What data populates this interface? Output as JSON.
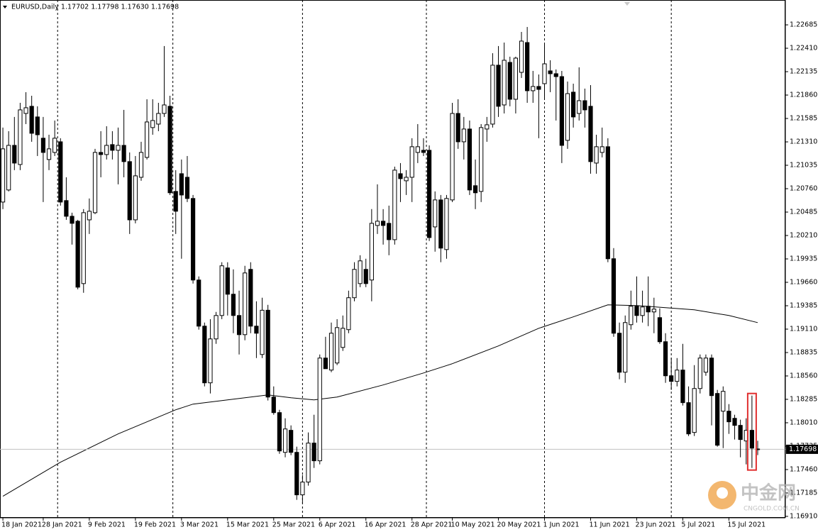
{
  "chart_data": {
    "type": "candlestick",
    "header": "EURUSD,Daily  1.17702 1.17798 1.17630 1.17698",
    "up_color": "#ffffff",
    "down_color": "#000000",
    "outline_color": "#000000",
    "open": [
      1.20603,
      1.20745,
      1.21269,
      1.21044,
      1.21644,
      1.21728,
      1.21603,
      1.21353,
      1.21103,
      1.21186,
      1.21311,
      1.2062,
      1.20436,
      1.20378,
      1.19645,
      1.20394,
      1.20478,
      1.21186,
      1.21161,
      1.21278,
      1.21211,
      1.21269,
      1.21078,
      1.20394,
      1.20894,
      1.21128,
      1.21478,
      1.21519,
      1.21644,
      1.21728,
      1.20728,
      1.20936,
      1.20894,
      1.20645,
      1.19687,
      1.19145,
      1.18479,
      1.18995,
      1.1927,
      1.19829,
      1.1952,
      1.1927,
      1.19045,
      1.19812,
      1.19145,
      1.18812,
      1.19332,
      1.18312,
      1.18129,
      1.17662,
      1.17921,
      1.17662,
      1.17163,
      1.17313,
      1.17771,
      1.17563,
      1.1877,
      1.18629,
      1.18712,
      1.18895,
      1.19104,
      1.19479,
      1.19645,
      1.19812,
      1.19687,
      1.20328,
      1.20378,
      1.20353,
      1.20161,
      1.20936,
      1.20853,
      1.20894,
      1.21186,
      1.21211,
      1.21211,
      1.20311,
      1.20628,
      1.20045,
      1.20628,
      1.21644,
      1.21311,
      1.21461,
      1.20795,
      1.20728,
      1.21461,
      1.21519,
      1.22211,
      1.21744,
      1.22244,
      1.21811,
      1.22127,
      1.22477,
      1.21911,
      1.21961,
      1.21994,
      1.22144,
      1.22111,
      1.22077,
      1.21328,
      1.21894,
      1.21644,
      1.21794,
      1.21728,
      1.21061,
      1.21186,
      1.21253,
      1.19937,
      1.19062,
      1.18604,
      1.19162,
      1.19379,
      1.1927,
      1.19379,
      1.19312,
      1.19245,
      1.18962,
      1.18562,
      1.18496,
      1.18629,
      1.18246,
      1.17896,
      1.18412,
      1.18604,
      1.1877,
      1.18354,
      1.18146,
      1.18146,
      1.18062,
      1.17979,
      1.17796,
      1.17921,
      1.17702
    ],
    "high": [
      1.21478,
      1.21436,
      1.21603,
      1.21769,
      1.21894,
      1.21852,
      1.21728,
      1.21603,
      1.21394,
      1.21561,
      1.21353,
      1.20894,
      1.20478,
      1.20394,
      1.2052,
      1.20645,
      1.21228,
      1.21436,
      1.21494,
      1.21436,
      1.21478,
      1.21686,
      1.21186,
      1.21144,
      1.21311,
      1.21811,
      1.21811,
      1.21769,
      1.22436,
      1.21852,
      1.20978,
      1.21103,
      1.21144,
      1.20686,
      1.19729,
      1.19187,
      1.19227,
      1.19312,
      1.19896,
      1.19896,
      1.19812,
      1.19562,
      1.19854,
      1.19896,
      1.19437,
      1.19479,
      1.19395,
      1.18437,
      1.18162,
      1.18062,
      1.17979,
      1.17729,
      1.17396,
      1.17896,
      1.18104,
      1.18812,
      1.1902,
      1.19187,
      1.19227,
      1.1927,
      1.19562,
      1.19896,
      1.19978,
      1.19937,
      1.2052,
      1.20811,
      1.2052,
      1.20561,
      1.21019,
      1.21061,
      1.20978,
      1.21353,
      1.21519,
      1.21353,
      1.21269,
      1.20728,
      1.20686,
      1.20686,
      1.21769,
      1.21811,
      1.21603,
      1.21561,
      1.21103,
      1.21519,
      1.21603,
      1.22352,
      1.22436,
      1.22477,
      1.22311,
      1.22311,
      1.22602,
      1.2266,
      1.22144,
      1.22102,
      1.22477,
      1.22269,
      1.22161,
      1.22144,
      1.22019,
      1.21994,
      1.22186,
      1.21936,
      1.21977,
      1.21394,
      1.21478,
      1.21353,
      1.20062,
      1.19187,
      1.1927,
      1.19562,
      1.19729,
      1.19562,
      1.19729,
      1.19479,
      1.19354,
      1.19062,
      1.1877,
      1.1877,
      1.18937,
      1.18437,
      1.18687,
      1.18812,
      1.18812,
      1.18812,
      1.18396,
      1.18437,
      1.18229,
      1.18104,
      1.18046,
      1.18062,
      1.18329,
      1.17798
    ],
    "low": [
      1.2052,
      1.20728,
      1.20978,
      1.20978,
      1.21519,
      1.21311,
      1.21144,
      1.20603,
      1.20978,
      1.21144,
      1.20561,
      1.20394,
      1.20103,
      1.19578,
      1.19537,
      1.20228,
      1.20461,
      1.20894,
      1.21103,
      1.21103,
      1.20811,
      1.20894,
      1.20228,
      1.20353,
      1.20853,
      1.21103,
      1.21394,
      1.21436,
      1.21603,
      1.20686,
      1.20228,
      1.19937,
      1.20603,
      1.19645,
      1.19104,
      1.18437,
      1.18354,
      1.18937,
      1.19227,
      1.1927,
      1.19062,
      1.18812,
      1.18979,
      1.19062,
      1.1877,
      1.1877,
      1.18271,
      1.18104,
      1.17645,
      1.17604,
      1.17629,
      1.17104,
      1.17063,
      1.17271,
      1.17479,
      1.17521,
      1.18645,
      1.18604,
      1.18687,
      1.18854,
      1.19062,
      1.19437,
      1.19603,
      1.19603,
      1.19437,
      1.20228,
      1.20103,
      1.19978,
      1.20103,
      1.20603,
      1.20686,
      1.20603,
      1.21061,
      1.21144,
      1.20145,
      1.2002,
      1.19896,
      1.19937,
      1.20603,
      1.21228,
      1.21103,
      1.20686,
      1.2052,
      1.20603,
      1.21311,
      1.21478,
      1.21603,
      1.21644,
      1.21728,
      1.21644,
      1.22061,
      1.21769,
      1.21769,
      1.21353,
      1.21811,
      1.21894,
      1.21561,
      1.21061,
      1.21228,
      1.21478,
      1.21561,
      1.21478,
      1.20936,
      1.20936,
      1.21128,
      1.19896,
      1.1902,
      1.18521,
      1.18479,
      1.19104,
      1.19187,
      1.19187,
      1.19145,
      1.19062,
      1.18937,
      1.18479,
      1.18396,
      1.18437,
      1.18212,
      1.17854,
      1.17854,
      1.18354,
      1.18562,
      1.17979,
      1.17729,
      1.17712,
      1.17879,
      1.17813,
      1.17604,
      1.17521,
      1.17479,
      1.1763
    ],
    "close": [
      1.21228,
      1.21269,
      1.21061,
      1.21686,
      1.21711,
      1.21411,
      1.21394,
      1.21186,
      1.21228,
      1.21353,
      1.20603,
      1.20436,
      1.20353,
      1.19603,
      1.20478,
      1.20495,
      1.21186,
      1.21161,
      1.21269,
      1.21211,
      1.21269,
      1.21078,
      1.20394,
      1.20911,
      1.21186,
      1.21544,
      1.21561,
      1.21644,
      1.21744,
      1.20712,
      1.20495,
      1.20686,
      1.20645,
      1.19687,
      1.19145,
      1.18479,
      1.18995,
      1.1927,
      1.19854,
      1.1952,
      1.1927,
      1.19045,
      1.1977,
      1.19145,
      1.19062,
      1.19332,
      1.18312,
      1.18129,
      1.17679,
      1.17937,
      1.17662,
      1.17163,
      1.17313,
      1.17771,
      1.17563,
      1.1877,
      1.18645,
      1.19062,
      1.19128,
      1.1912,
      1.19479,
      1.19812,
      1.19912,
      1.19645,
      1.20353,
      1.20378,
      1.20328,
      1.20161,
      1.20978,
      1.20878,
      1.20894,
      1.21253,
      1.21253,
      1.21186,
      1.20186,
      1.20628,
      1.20062,
      1.20645,
      1.21644,
      1.21311,
      1.21461,
      1.20745,
      1.20712,
      1.21478,
      1.21511,
      1.22211,
      1.21728,
      1.22269,
      1.21811,
      1.22294,
      1.22494,
      1.21911,
      1.21961,
      1.21927,
      1.22227,
      1.22111,
      1.22077,
      1.21269,
      1.21877,
      1.21603,
      1.21794,
      1.21686,
      1.21078,
      1.21253,
      1.21253,
      1.19937,
      1.19062,
      1.18604,
      1.19187,
      1.19379,
      1.1927,
      1.1937,
      1.19312,
      1.19345,
      1.18962,
      1.18562,
      1.18496,
      1.18629,
      1.18246,
      1.17879,
      1.18412,
      1.1877,
      1.1877,
      1.18329,
      1.17746,
      1.18379,
      1.18021,
      1.17979,
      1.17813,
      1.17921,
      1.17712,
      1.17698
    ],
    "moving_average": {
      "color": "#000000",
      "x": [
        0,
        10,
        20,
        30,
        33,
        40,
        46,
        50,
        54,
        58,
        66,
        73,
        78,
        86,
        93,
        99,
        105,
        110,
        115,
        120,
        126,
        131
      ],
      "values": [
        1.17146,
        1.17546,
        1.17879,
        1.18162,
        1.18229,
        1.18287,
        1.18337,
        1.18304,
        1.18279,
        1.18312,
        1.18454,
        1.18595,
        1.18704,
        1.18912,
        1.1912,
        1.19254,
        1.19395,
        1.19387,
        1.19362,
        1.19337,
        1.1927,
        1.19187
      ]
    },
    "period_separators": [
      9.5,
      29.5,
      52,
      73.5,
      94,
      116
    ],
    "xlim": [
      -0.5,
      135.8
    ],
    "xticks": [
      {
        "value": 0,
        "label": "18 Jan 2021"
      },
      {
        "value": 7,
        "label": "28 Jan 2021"
      },
      {
        "value": 15,
        "label": "9 Feb 2021"
      },
      {
        "value": 23,
        "label": "19 Feb 2021"
      },
      {
        "value": 31,
        "label": "3 Mar 2021"
      },
      {
        "value": 39,
        "label": "15 Mar 2021"
      },
      {
        "value": 47,
        "label": "25 Mar 2021"
      },
      {
        "value": 55,
        "label": "6 Apr 2021"
      },
      {
        "value": 63,
        "label": "16 Apr 2021"
      },
      {
        "value": 71,
        "label": "28 Apr 2021"
      },
      {
        "value": 78,
        "label": "10 May 2021"
      },
      {
        "value": 86,
        "label": "20 May 2021"
      },
      {
        "value": 94,
        "label": "1 Jun 2021"
      },
      {
        "value": 102,
        "label": "11 Jun 2021"
      },
      {
        "value": 110,
        "label": "23 Jun 2021"
      },
      {
        "value": 118,
        "label": "5 Jul 2021"
      },
      {
        "value": 126,
        "label": "15 Jul 2021"
      }
    ],
    "ylim": [
      1.16893,
      1.22977
    ],
    "yticks": [
      1.22685,
      {
        "value": 1.2241,
        "label": "1.22410"
      },
      1.22135,
      {
        "value": 1.2186,
        "label": "1.21860"
      },
      1.21585,
      {
        "value": 1.2131,
        "label": "1.21310"
      },
      1.21035,
      {
        "value": 1.2076,
        "label": "1.20760"
      },
      1.20485,
      {
        "value": 1.2021,
        "label": "1.20210"
      },
      1.19935,
      {
        "value": 1.1966,
        "label": "1.19660"
      },
      1.19385,
      {
        "value": 1.1911,
        "label": "1.19110"
      },
      1.18835,
      {
        "value": 1.1856,
        "label": "1.18560"
      },
      1.18285,
      {
        "value": 1.1801,
        "label": "1.18010"
      },
      1.17735,
      {
        "value": 1.1746,
        "label": "1.17460"
      },
      1.17185,
      {
        "value": 1.1691,
        "label": "1.16910"
      }
    ],
    "grid": false,
    "watermark": {
      "brand": "中金网",
      "site": "CNGOLD.COM.CN"
    }
  }
}
